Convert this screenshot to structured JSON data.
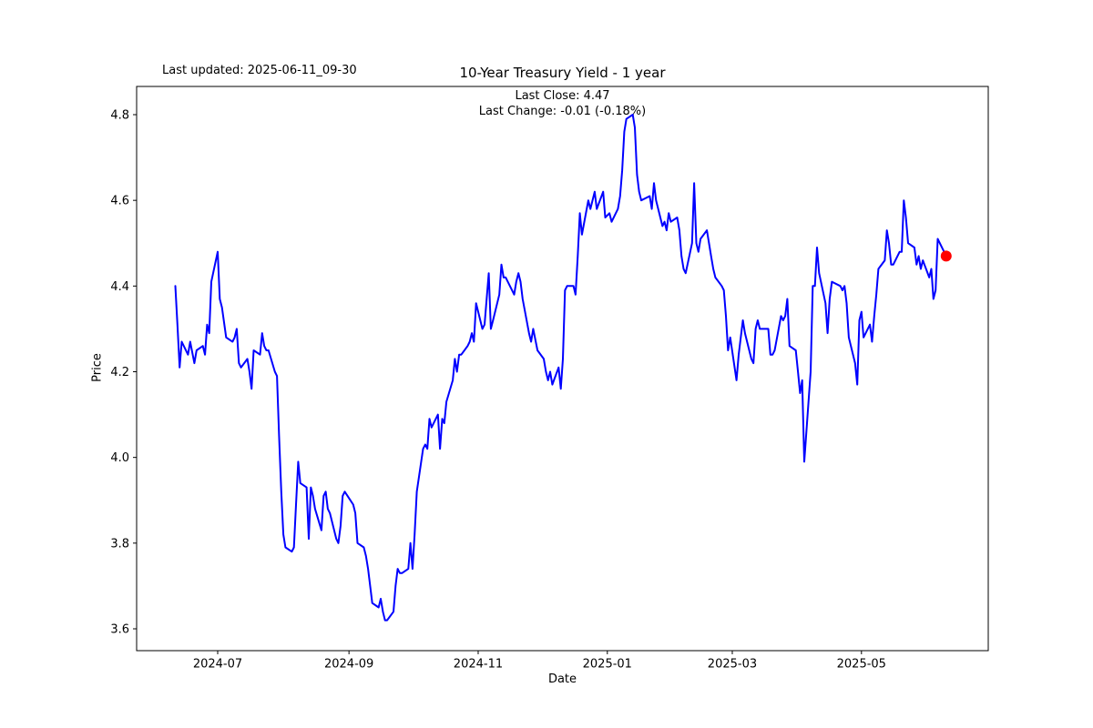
{
  "figure": {
    "last_updated_label": "Last updated: 2025-06-11_09-30",
    "title": "10-Year Treasury Yield - 1 year",
    "annotation_line1": "Last Close: 4.47",
    "annotation_line2": "Last Change: -0.01 (-0.18%)",
    "xlabel": "Date",
    "ylabel": "Price"
  },
  "chart_data": {
    "type": "line",
    "title": "10-Year Treasury Yield - 1 year",
    "xlabel": "Date",
    "ylabel": "Price",
    "last_close": 4.47,
    "last_change": "-0.01 (-0.18%)",
    "grid": false,
    "legend": "none",
    "line_color": "#0000ff",
    "line_width": 2,
    "last_point_marker_color": "#ff0000",
    "background_color": "#ffffff",
    "ylim": [
      3.55,
      4.87
    ],
    "xlim": [
      "2024-05-23",
      "2025-06-29"
    ],
    "y_ticks": [
      3.6,
      3.8,
      4.0,
      4.2,
      4.4,
      4.6,
      4.8
    ],
    "x_ticks": [
      {
        "label": "2024-07",
        "date": "2024-07-01"
      },
      {
        "label": "2024-09",
        "date": "2024-09-01"
      },
      {
        "label": "2024-11",
        "date": "2024-11-01"
      },
      {
        "label": "2025-01",
        "date": "2025-01-01"
      },
      {
        "label": "2025-03",
        "date": "2025-03-01"
      },
      {
        "label": "2025-05",
        "date": "2025-05-01"
      }
    ],
    "series": [
      {
        "name": "10-Year Treasury Yield",
        "points": [
          [
            "2024-06-11",
            4.4
          ],
          [
            "2024-06-12",
            4.31
          ],
          [
            "2024-06-13",
            4.21
          ],
          [
            "2024-06-14",
            4.27
          ],
          [
            "2024-06-17",
            4.24
          ],
          [
            "2024-06-18",
            4.27
          ],
          [
            "2024-06-20",
            4.22
          ],
          [
            "2024-06-21",
            4.25
          ],
          [
            "2024-06-24",
            4.26
          ],
          [
            "2024-06-25",
            4.24
          ],
          [
            "2024-06-26",
            4.31
          ],
          [
            "2024-06-27",
            4.29
          ],
          [
            "2024-06-28",
            4.41
          ],
          [
            "2024-07-01",
            4.48
          ],
          [
            "2024-07-02",
            4.37
          ],
          [
            "2024-07-03",
            4.35
          ],
          [
            "2024-07-05",
            4.28
          ],
          [
            "2024-07-08",
            4.27
          ],
          [
            "2024-07-09",
            4.28
          ],
          [
            "2024-07-10",
            4.3
          ],
          [
            "2024-07-11",
            4.22
          ],
          [
            "2024-07-12",
            4.21
          ],
          [
            "2024-07-15",
            4.23
          ],
          [
            "2024-07-16",
            4.2
          ],
          [
            "2024-07-17",
            4.16
          ],
          [
            "2024-07-18",
            4.25
          ],
          [
            "2024-07-21",
            4.24
          ],
          [
            "2024-07-22",
            4.29
          ],
          [
            "2024-07-23",
            4.26
          ],
          [
            "2024-07-24",
            4.25
          ],
          [
            "2024-07-25",
            4.25
          ],
          [
            "2024-07-28",
            4.2
          ],
          [
            "2024-07-29",
            4.19
          ],
          [
            "2024-07-30",
            4.05
          ],
          [
            "2024-07-31",
            3.92
          ],
          [
            "2024-08-01",
            3.82
          ],
          [
            "2024-08-02",
            3.79
          ],
          [
            "2024-08-05",
            3.78
          ],
          [
            "2024-08-06",
            3.79
          ],
          [
            "2024-08-07",
            3.89
          ],
          [
            "2024-08-08",
            3.99
          ],
          [
            "2024-08-09",
            3.94
          ],
          [
            "2024-08-12",
            3.93
          ],
          [
            "2024-08-13",
            3.81
          ],
          [
            "2024-08-14",
            3.93
          ],
          [
            "2024-08-15",
            3.91
          ],
          [
            "2024-08-16",
            3.88
          ],
          [
            "2024-08-19",
            3.83
          ],
          [
            "2024-08-20",
            3.91
          ],
          [
            "2024-08-21",
            3.92
          ],
          [
            "2024-08-22",
            3.88
          ],
          [
            "2024-08-23",
            3.87
          ],
          [
            "2024-08-26",
            3.81
          ],
          [
            "2024-08-27",
            3.8
          ],
          [
            "2024-08-28",
            3.84
          ],
          [
            "2024-08-29",
            3.91
          ],
          [
            "2024-08-30",
            3.92
          ],
          [
            "2024-09-03",
            3.89
          ],
          [
            "2024-09-04",
            3.87
          ],
          [
            "2024-09-05",
            3.8
          ],
          [
            "2024-09-08",
            3.79
          ],
          [
            "2024-09-09",
            3.77
          ],
          [
            "2024-09-10",
            3.74
          ],
          [
            "2024-09-11",
            3.7
          ],
          [
            "2024-09-12",
            3.66
          ],
          [
            "2024-09-15",
            3.65
          ],
          [
            "2024-09-16",
            3.67
          ],
          [
            "2024-09-17",
            3.64
          ],
          [
            "2024-09-18",
            3.62
          ],
          [
            "2024-09-19",
            3.62
          ],
          [
            "2024-09-22",
            3.64
          ],
          [
            "2024-09-23",
            3.7
          ],
          [
            "2024-09-24",
            3.74
          ],
          [
            "2024-09-25",
            3.73
          ],
          [
            "2024-09-26",
            3.73
          ],
          [
            "2024-09-29",
            3.74
          ],
          [
            "2024-09-30",
            3.8
          ],
          [
            "2024-10-01",
            3.74
          ],
          [
            "2024-10-02",
            3.82
          ],
          [
            "2024-10-03",
            3.92
          ],
          [
            "2024-10-06",
            4.02
          ],
          [
            "2024-10-07",
            4.03
          ],
          [
            "2024-10-08",
            4.02
          ],
          [
            "2024-10-09",
            4.09
          ],
          [
            "2024-10-10",
            4.07
          ],
          [
            "2024-10-13",
            4.1
          ],
          [
            "2024-10-14",
            4.02
          ],
          [
            "2024-10-15",
            4.09
          ],
          [
            "2024-10-16",
            4.08
          ],
          [
            "2024-10-17",
            4.13
          ],
          [
            "2024-10-20",
            4.18
          ],
          [
            "2024-10-21",
            4.23
          ],
          [
            "2024-10-22",
            4.2
          ],
          [
            "2024-10-23",
            4.24
          ],
          [
            "2024-10-24",
            4.24
          ],
          [
            "2024-10-27",
            4.26
          ],
          [
            "2024-10-28",
            4.27
          ],
          [
            "2024-10-29",
            4.29
          ],
          [
            "2024-10-30",
            4.27
          ],
          [
            "2024-10-31",
            4.36
          ],
          [
            "2024-11-03",
            4.3
          ],
          [
            "2024-11-04",
            4.31
          ],
          [
            "2024-11-06",
            4.43
          ],
          [
            "2024-11-07",
            4.3
          ],
          [
            "2024-11-08",
            4.32
          ],
          [
            "2024-11-11",
            4.38
          ],
          [
            "2024-11-12",
            4.45
          ],
          [
            "2024-11-13",
            4.42
          ],
          [
            "2024-11-14",
            4.42
          ],
          [
            "2024-11-15",
            4.41
          ],
          [
            "2024-11-18",
            4.38
          ],
          [
            "2024-11-19",
            4.41
          ],
          [
            "2024-11-20",
            4.43
          ],
          [
            "2024-11-21",
            4.41
          ],
          [
            "2024-11-22",
            4.37
          ],
          [
            "2024-11-25",
            4.29
          ],
          [
            "2024-11-26",
            4.27
          ],
          [
            "2024-11-27",
            4.3
          ],
          [
            "2024-11-29",
            4.25
          ],
          [
            "2024-12-02",
            4.23
          ],
          [
            "2024-12-03",
            4.2
          ],
          [
            "2024-12-04",
            4.18
          ],
          [
            "2024-12-05",
            4.2
          ],
          [
            "2024-12-06",
            4.17
          ],
          [
            "2024-12-09",
            4.21
          ],
          [
            "2024-12-10",
            4.16
          ],
          [
            "2024-12-11",
            4.23
          ],
          [
            "2024-12-12",
            4.39
          ],
          [
            "2024-12-13",
            4.4
          ],
          [
            "2024-12-16",
            4.4
          ],
          [
            "2024-12-17",
            4.38
          ],
          [
            "2024-12-18",
            4.47
          ],
          [
            "2024-12-19",
            4.57
          ],
          [
            "2024-12-20",
            4.52
          ],
          [
            "2024-12-23",
            4.6
          ],
          [
            "2024-12-24",
            4.58
          ],
          [
            "2024-12-26",
            4.62
          ],
          [
            "2024-12-27",
            4.58
          ],
          [
            "2024-12-30",
            4.62
          ],
          [
            "2024-12-31",
            4.56
          ],
          [
            "2025-01-02",
            4.57
          ],
          [
            "2025-01-03",
            4.55
          ],
          [
            "2025-01-06",
            4.58
          ],
          [
            "2025-01-07",
            4.61
          ],
          [
            "2025-01-08",
            4.67
          ],
          [
            "2025-01-09",
            4.76
          ],
          [
            "2025-01-10",
            4.79
          ],
          [
            "2025-01-13",
            4.8
          ],
          [
            "2025-01-14",
            4.77
          ],
          [
            "2025-01-15",
            4.66
          ],
          [
            "2025-01-16",
            4.62
          ],
          [
            "2025-01-17",
            4.6
          ],
          [
            "2025-01-21",
            4.61
          ],
          [
            "2025-01-22",
            4.58
          ],
          [
            "2025-01-23",
            4.64
          ],
          [
            "2025-01-24",
            4.6
          ],
          [
            "2025-01-27",
            4.54
          ],
          [
            "2025-01-28",
            4.55
          ],
          [
            "2025-01-29",
            4.53
          ],
          [
            "2025-01-30",
            4.57
          ],
          [
            "2025-01-31",
            4.55
          ],
          [
            "2025-02-03",
            4.56
          ],
          [
            "2025-02-04",
            4.53
          ],
          [
            "2025-02-05",
            4.47
          ],
          [
            "2025-02-06",
            4.44
          ],
          [
            "2025-02-07",
            4.43
          ],
          [
            "2025-02-10",
            4.5
          ],
          [
            "2025-02-11",
            4.64
          ],
          [
            "2025-02-12",
            4.5
          ],
          [
            "2025-02-13",
            4.48
          ],
          [
            "2025-02-14",
            4.51
          ],
          [
            "2025-02-17",
            4.53
          ],
          [
            "2025-02-18",
            4.5
          ],
          [
            "2025-02-19",
            4.47
          ],
          [
            "2025-02-20",
            4.44
          ],
          [
            "2025-02-21",
            4.42
          ],
          [
            "2025-02-24",
            4.4
          ],
          [
            "2025-02-25",
            4.39
          ],
          [
            "2025-02-26",
            4.33
          ],
          [
            "2025-02-27",
            4.25
          ],
          [
            "2025-02-28",
            4.28
          ],
          [
            "2025-03-03",
            4.18
          ],
          [
            "2025-03-04",
            4.24
          ],
          [
            "2025-03-05",
            4.28
          ],
          [
            "2025-03-06",
            4.32
          ],
          [
            "2025-03-07",
            4.29
          ],
          [
            "2025-03-10",
            4.23
          ],
          [
            "2025-03-11",
            4.22
          ],
          [
            "2025-03-12",
            4.3
          ],
          [
            "2025-03-13",
            4.32
          ],
          [
            "2025-03-14",
            4.3
          ],
          [
            "2025-03-17",
            4.3
          ],
          [
            "2025-03-18",
            4.3
          ],
          [
            "2025-03-19",
            4.24
          ],
          [
            "2025-03-20",
            4.24
          ],
          [
            "2025-03-21",
            4.25
          ],
          [
            "2025-03-24",
            4.33
          ],
          [
            "2025-03-25",
            4.32
          ],
          [
            "2025-03-26",
            4.33
          ],
          [
            "2025-03-27",
            4.37
          ],
          [
            "2025-03-28",
            4.26
          ],
          [
            "2025-03-31",
            4.25
          ],
          [
            "2025-04-01",
            4.2
          ],
          [
            "2025-04-02",
            4.15
          ],
          [
            "2025-04-03",
            4.18
          ],
          [
            "2025-04-04",
            3.99
          ],
          [
            "2025-04-07",
            4.2
          ],
          [
            "2025-04-08",
            4.4
          ],
          [
            "2025-04-09",
            4.4
          ],
          [
            "2025-04-10",
            4.49
          ],
          [
            "2025-04-11",
            4.43
          ],
          [
            "2025-04-14",
            4.36
          ],
          [
            "2025-04-15",
            4.29
          ],
          [
            "2025-04-16",
            4.37
          ],
          [
            "2025-04-17",
            4.41
          ],
          [
            "2025-04-21",
            4.4
          ],
          [
            "2025-04-22",
            4.39
          ],
          [
            "2025-04-23",
            4.4
          ],
          [
            "2025-04-24",
            4.36
          ],
          [
            "2025-04-25",
            4.28
          ],
          [
            "2025-04-28",
            4.22
          ],
          [
            "2025-04-29",
            4.17
          ],
          [
            "2025-04-30",
            4.32
          ],
          [
            "2025-05-01",
            4.34
          ],
          [
            "2025-05-02",
            4.28
          ],
          [
            "2025-05-05",
            4.31
          ],
          [
            "2025-05-06",
            4.27
          ],
          [
            "2025-05-07",
            4.33
          ],
          [
            "2025-05-08",
            4.38
          ],
          [
            "2025-05-09",
            4.44
          ],
          [
            "2025-05-12",
            4.46
          ],
          [
            "2025-05-13",
            4.53
          ],
          [
            "2025-05-14",
            4.5
          ],
          [
            "2025-05-15",
            4.45
          ],
          [
            "2025-05-16",
            4.45
          ],
          [
            "2025-05-19",
            4.48
          ],
          [
            "2025-05-20",
            4.48
          ],
          [
            "2025-05-21",
            4.6
          ],
          [
            "2025-05-22",
            4.56
          ],
          [
            "2025-05-23",
            4.5
          ],
          [
            "2025-05-26",
            4.49
          ],
          [
            "2025-05-27",
            4.45
          ],
          [
            "2025-05-28",
            4.47
          ],
          [
            "2025-05-29",
            4.44
          ],
          [
            "2025-05-30",
            4.46
          ],
          [
            "2025-06-02",
            4.42
          ],
          [
            "2025-06-03",
            4.44
          ],
          [
            "2025-06-04",
            4.37
          ],
          [
            "2025-06-05",
            4.39
          ],
          [
            "2025-06-06",
            4.51
          ],
          [
            "2025-06-09",
            4.48
          ],
          [
            "2025-06-10",
            4.47
          ]
        ]
      }
    ]
  }
}
